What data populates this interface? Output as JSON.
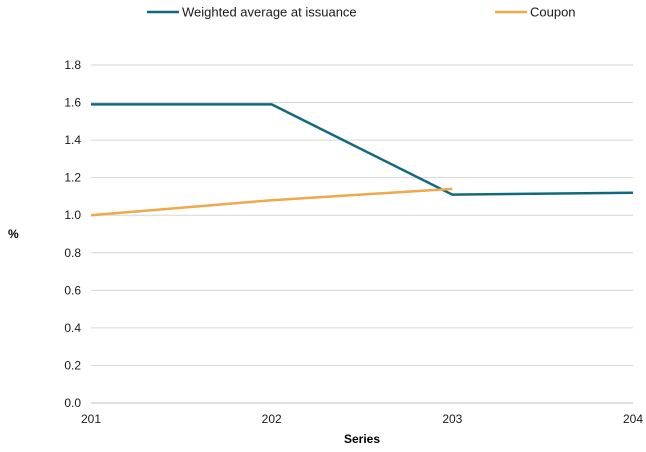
{
  "chart_data": {
    "type": "line",
    "title": "",
    "xlabel": "Series",
    "ylabel": "%",
    "categories": [
      "201",
      "202",
      "203",
      "204"
    ],
    "xlim": [
      201,
      204
    ],
    "ylim": [
      0,
      1.8
    ],
    "yticks": [
      "0.0",
      "0.2",
      "0.4",
      "0.6",
      "0.8",
      "1.0",
      "1.2",
      "1.4",
      "1.6",
      "1.8"
    ],
    "grid": true,
    "legend_position": "top",
    "series": [
      {
        "name": "Weighted average at issuance",
        "color": "#0f6a80",
        "points": [
          [
            201,
            1.59
          ],
          [
            202,
            1.59
          ],
          [
            203,
            1.11
          ],
          [
            204,
            1.12
          ]
        ]
      },
      {
        "name": "Coupon",
        "color": "#f0a84a",
        "points": [
          [
            201,
            1.0
          ],
          [
            202,
            1.08
          ],
          [
            203,
            1.14
          ]
        ]
      }
    ]
  }
}
